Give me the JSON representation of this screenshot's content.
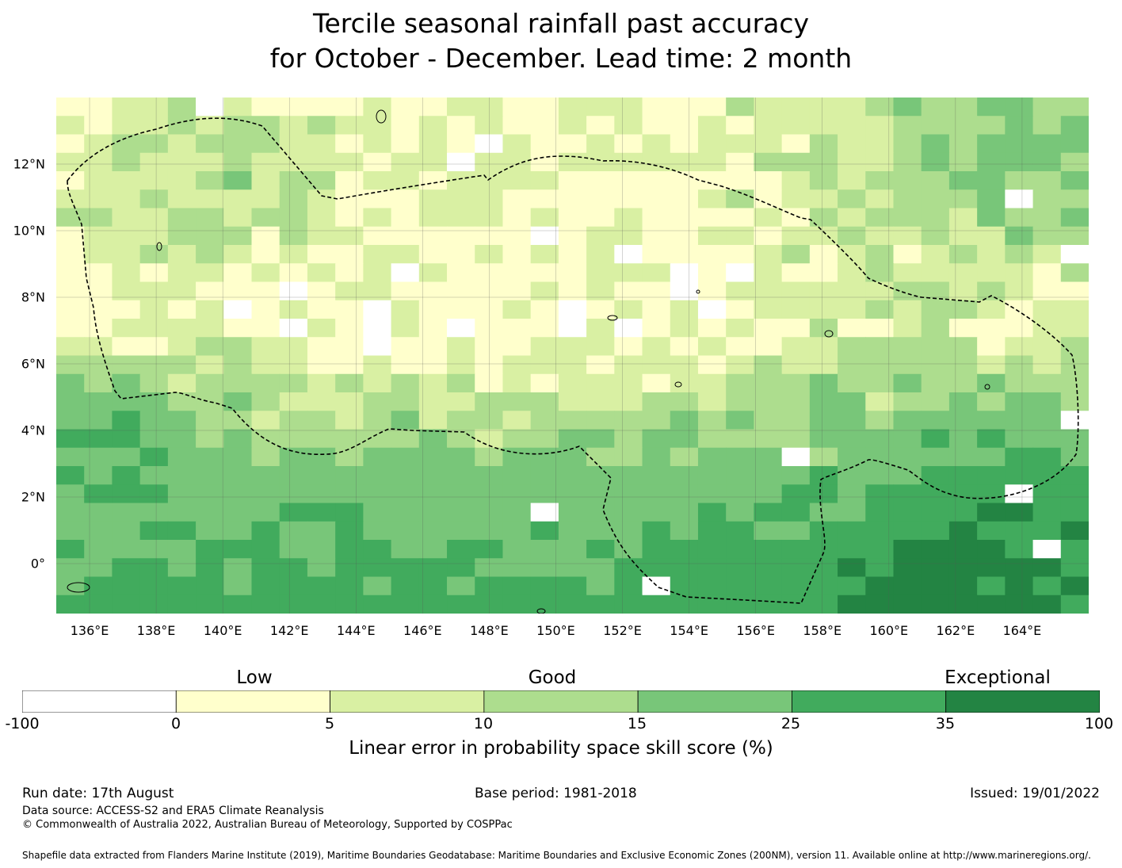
{
  "title_line1": "Tercile seasonal rainfall past accuracy",
  "title_line2": "for October - December. Lead time: 2 month",
  "map": {
    "lon_range": [
      135.0,
      166.0
    ],
    "lat_range": [
      -1.5,
      14.0
    ],
    "lon_ticks": [
      "136°E",
      "138°E",
      "140°E",
      "142°E",
      "144°E",
      "146°E",
      "148°E",
      "150°E",
      "152°E",
      "154°E",
      "156°E",
      "158°E",
      "160°E",
      "162°E",
      "164°E"
    ],
    "lon_values": [
      136,
      138,
      140,
      142,
      144,
      146,
      148,
      150,
      152,
      154,
      156,
      158,
      160,
      162,
      164
    ],
    "lat_ticks": [
      "12°N",
      "10°N",
      "8°N",
      "6°N",
      "4°N",
      "2°N",
      "0°"
    ],
    "lat_values": [
      12,
      10,
      8,
      6,
      4,
      2,
      0
    ],
    "grid": true
  },
  "colorbar": {
    "categories": [
      "Low",
      "Good",
      "Exceptional"
    ],
    "ticks": [
      "-100",
      "0",
      "5",
      "10",
      "15",
      "25",
      "35",
      "100"
    ],
    "colors": [
      "#ffffff",
      "#ffffcc",
      "#d9f0a3",
      "#addd8e",
      "#78c679",
      "#41ab5d",
      "#238443"
    ],
    "label": "Linear error in probability space skill score (%)"
  },
  "footer": {
    "run_date": "Run date: 17th August",
    "base_period": "Base period: 1981-2018",
    "issued": "Issued: 19/01/2022",
    "data_source": "Data source: ACCESS-S2 and ERA5 Climate Reanalysis",
    "copyright": "© Commonwealth of Australia 2022, Australian Bureau of Meteorology, Supported by COSPPac",
    "shapefile": "Shapefile data extracted from Flanders Marine Institute (2019), Maritime Boundaries Geodatabase: Maritime Boundaries and Exclusive Economic Zones (200NM), version 11. Available online at http://www.marineregions.org/."
  }
}
